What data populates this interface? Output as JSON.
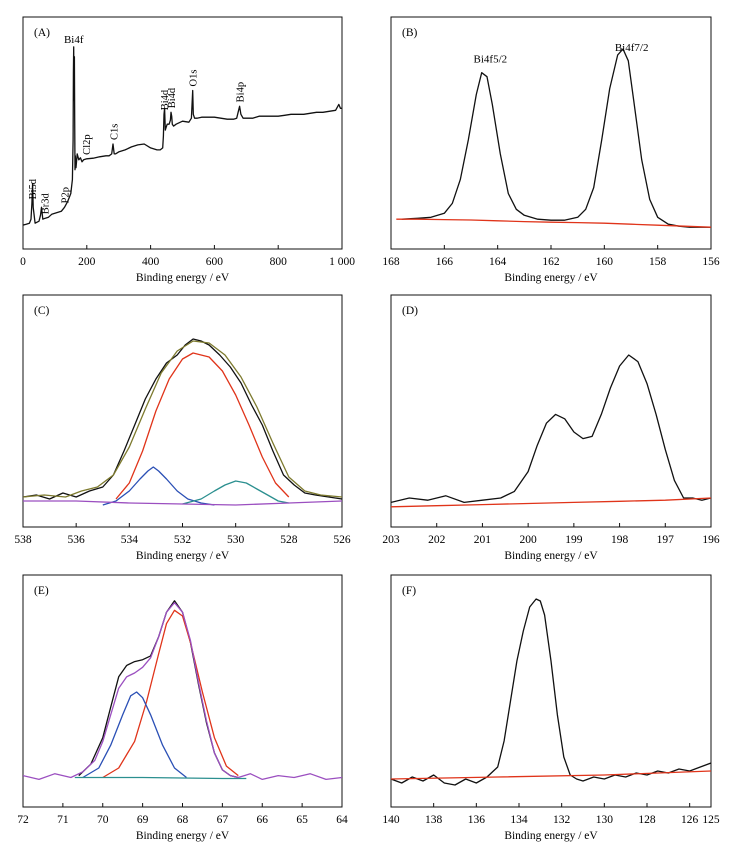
{
  "chart_data": [
    {
      "panel": "(A)",
      "type": "line",
      "xlabel": "Binding energy / eV",
      "xlim": [
        0,
        1000
      ],
      "xticks": [
        0,
        200,
        400,
        600,
        800,
        1000
      ],
      "xtick_labels": [
        "0",
        "200",
        "400",
        "600",
        "800",
        "1 000"
      ],
      "series": [
        {
          "color": "#111111",
          "x": [
            0,
            10,
            20,
            25,
            28,
            30,
            32,
            38,
            50,
            55,
            58,
            62,
            70,
            80,
            90,
            100,
            110,
            120,
            130,
            140,
            145,
            150,
            155,
            157,
            158,
            159,
            160,
            161,
            162,
            163,
            164,
            166,
            170,
            175,
            180,
            185,
            190,
            200,
            220,
            240,
            260,
            270,
            278,
            282,
            286,
            290,
            300,
            320,
            340,
            360,
            380,
            400,
            420,
            430,
            438,
            440,
            442,
            444,
            446,
            448,
            452,
            458,
            462,
            464,
            466,
            468,
            472,
            480,
            500,
            520,
            528,
            532,
            534,
            538,
            545,
            560,
            580,
            600,
            620,
            640,
            660,
            670,
            676,
            679,
            683,
            690,
            700,
            720,
            740,
            760,
            780,
            800,
            820,
            840,
            860,
            880,
            900,
            920,
            940,
            960,
            980,
            990,
            995,
            1000
          ],
          "y": [
            7,
            7.5,
            8,
            10,
            18,
            28,
            16,
            8,
            9,
            12,
            16,
            10,
            10.5,
            11,
            12.5,
            13,
            13.5,
            14,
            16,
            19,
            21,
            23,
            30,
            50,
            84,
            97,
            70,
            92,
            60,
            35,
            42,
            36,
            43,
            40,
            41,
            39,
            40,
            40.5,
            40.8,
            41.5,
            42,
            42,
            43,
            48,
            43,
            43,
            44,
            45,
            46.5,
            47.5,
            48,
            46,
            45,
            45,
            46,
            52,
            63,
            66,
            55,
            56,
            58,
            58,
            60,
            64,
            62,
            58,
            57,
            58,
            59.5,
            59,
            61,
            75,
            63,
            61,
            61,
            61.5,
            61.5,
            61.5,
            61,
            60.5,
            60.5,
            61,
            65,
            67,
            63,
            61,
            61,
            61,
            62,
            62,
            62,
            62,
            62.5,
            63,
            63,
            63,
            63.5,
            64,
            64,
            64.5,
            65,
            68,
            66,
            66
          ]
        }
      ],
      "annotations": [
        {
          "label": "Bi5d",
          "x": 28
        },
        {
          "label": "Br3d",
          "x": 68
        },
        {
          "label": "P2p",
          "x": 130
        },
        {
          "label": "Bi4f",
          "x": 159
        },
        {
          "label": "Cl2p",
          "x": 198
        },
        {
          "label": "C1s",
          "x": 284
        },
        {
          "label": "Bi4d",
          "x": 442
        },
        {
          "label": "Bi4d",
          "x": 464
        },
        {
          "label": "O1s",
          "x": 532
        },
        {
          "label": "Bi4p",
          "x": 679
        }
      ]
    },
    {
      "panel": "(B)",
      "type": "line",
      "xlabel": "Binding energy / eV",
      "xlim": [
        168,
        156
      ],
      "xticks": [
        168,
        166,
        164,
        162,
        160,
        158,
        156
      ],
      "xtick_labels": [
        "168",
        "166",
        "164",
        "162",
        "160",
        "158",
        "156"
      ],
      "series": [
        {
          "color": "#111111",
          "x": [
            167.6,
            167,
            166.5,
            166,
            165.7,
            165.4,
            165.1,
            164.8,
            164.6,
            164.4,
            164.2,
            163.9,
            163.6,
            163.3,
            163,
            162.5,
            162,
            161.5,
            161,
            160.7,
            160.4,
            160.1,
            159.8,
            159.5,
            159.3,
            159.1,
            158.9,
            158.6,
            158.3,
            158,
            157.6,
            157.2,
            156.8,
            156.4,
            156
          ],
          "y": [
            12,
            12.5,
            13,
            15,
            20,
            32,
            52,
            75,
            86,
            84,
            70,
            45,
            25,
            17,
            14,
            12,
            11.5,
            11.5,
            13,
            17,
            28,
            52,
            78,
            95,
            98,
            92,
            72,
            42,
            22,
            13,
            9.5,
            8.5,
            8,
            8,
            8
          ]
        },
        {
          "color": "#e0341a",
          "x": [
            167.8,
            167,
            166,
            165,
            164,
            163,
            162,
            161,
            160,
            159,
            158,
            157,
            156
          ],
          "y": [
            12,
            12,
            11.8,
            11.6,
            11.2,
            10.8,
            10.5,
            10.3,
            10,
            9.5,
            9,
            8.5,
            8
          ]
        }
      ],
      "annotations": [
        {
          "label": "Bi4f5/2",
          "x": 164.5
        },
        {
          "label": "Bi4f7/2",
          "x": 159.2
        }
      ]
    },
    {
      "panel": "(C)",
      "type": "line",
      "xlabel": "Binding energy / eV",
      "xlim": [
        538,
        526
      ],
      "xticks": [
        538,
        536,
        534,
        532,
        530,
        528,
        526
      ],
      "xtick_labels": [
        "538",
        "536",
        "534",
        "532",
        "530",
        "528",
        "526"
      ],
      "series": [
        {
          "color": "#111111",
          "x": [
            538,
            537.5,
            537,
            536.5,
            536,
            535.5,
            535,
            534.6,
            534.2,
            533.8,
            533.4,
            533,
            532.6,
            532.2,
            531.9,
            531.6,
            531.3,
            531,
            530.6,
            530.2,
            529.8,
            529.4,
            529,
            528.6,
            528.2,
            527.8,
            527.4,
            527,
            526.5,
            526
          ],
          "y": [
            9,
            10,
            8,
            11,
            9,
            12,
            14,
            20,
            32,
            45,
            58,
            68,
            76,
            80,
            85,
            88,
            87,
            85,
            80,
            74,
            66,
            55,
            45,
            32,
            20,
            15,
            11,
            10,
            9,
            8
          ]
        },
        {
          "color": "#e0341a",
          "x": [
            534.5,
            534,
            533.5,
            533,
            532.5,
            532,
            531.6,
            531,
            530.5,
            530,
            529.5,
            529,
            528.5,
            528
          ],
          "y": [
            8,
            16,
            32,
            52,
            68,
            78,
            81,
            79,
            72,
            60,
            45,
            29,
            16,
            9
          ]
        },
        {
          "color": "#2a4fb5",
          "x": [
            535,
            534.5,
            534,
            533.6,
            533.3,
            533.1,
            532.9,
            532.6,
            532.2,
            531.8,
            531.3,
            530.8
          ],
          "y": [
            5,
            7,
            12,
            18,
            22,
            24,
            22,
            18,
            12,
            8,
            6,
            5
          ]
        },
        {
          "color": "#2b8f8f",
          "x": [
            532,
            531.3,
            530.8,
            530.4,
            530,
            529.6,
            529.2,
            528.8,
            528.4,
            528
          ],
          "y": [
            5.5,
            8,
            12,
            15,
            17,
            16,
            13,
            10,
            7,
            6
          ]
        },
        {
          "color": "#7d7a2e",
          "x": [
            538,
            537.2,
            536.4,
            535.8,
            535.2,
            534.6,
            534,
            533.4,
            532.8,
            532.2,
            531.6,
            531,
            530.4,
            529.8,
            529.2,
            528.6,
            528,
            527.4,
            526.8,
            526
          ],
          "y": [
            9,
            10,
            9,
            12,
            14,
            20,
            34,
            53,
            71,
            82,
            87,
            86,
            80,
            69,
            54,
            36,
            19,
            12,
            10,
            9
          ]
        },
        {
          "color": "#9b4fc0",
          "x": [
            538,
            536,
            534,
            532,
            530,
            528,
            526
          ],
          "y": [
            7,
            7,
            6,
            5.5,
            5,
            6,
            7
          ]
        }
      ]
    },
    {
      "panel": "(D)",
      "type": "line",
      "xlabel": "Binding energy / eV",
      "xlim": [
        203,
        196
      ],
      "xticks": [
        203,
        202,
        201,
        200,
        199,
        198,
        197,
        196
      ],
      "xtick_labels": [
        "203",
        "202",
        "201",
        "200",
        "199",
        "198",
        "197",
        "196"
      ],
      "series": [
        {
          "color": "#111111",
          "x": [
            203,
            202.6,
            202.2,
            201.8,
            201.4,
            201,
            200.6,
            200.3,
            200,
            199.8,
            199.6,
            199.4,
            199.2,
            199,
            198.8,
            198.6,
            198.4,
            198.2,
            198,
            197.8,
            197.6,
            197.4,
            197.2,
            197,
            196.8,
            196.6,
            196.4,
            196.2,
            196
          ],
          "y": [
            8,
            10,
            9,
            11,
            8,
            9,
            10,
            13,
            22,
            34,
            44,
            48,
            46,
            40,
            37,
            38,
            48,
            60,
            70,
            75,
            72,
            62,
            48,
            32,
            18,
            10,
            10,
            9,
            10
          ]
        },
        {
          "color": "#e0341a",
          "x": [
            203,
            202,
            201,
            200,
            199,
            198,
            197,
            196
          ],
          "y": [
            6,
            6.5,
            7,
            7.5,
            8,
            8.5,
            9,
            10
          ]
        }
      ]
    },
    {
      "panel": "(E)",
      "type": "line",
      "xlabel": "Binding energy / eV",
      "xlim": [
        72,
        64
      ],
      "xticks": [
        72,
        71,
        70,
        69,
        68,
        67,
        66,
        65,
        64
      ],
      "xtick_labels": [
        "72",
        "71",
        "70",
        "69",
        "68",
        "67",
        "66",
        "65",
        "64"
      ],
      "series": [
        {
          "color": "#111111",
          "x": [
            70.6,
            70.3,
            70,
            69.8,
            69.6,
            69.4,
            69.2,
            69,
            68.8,
            68.6,
            68.4,
            68.2,
            68,
            67.8,
            67.6,
            67.4,
            67.2,
            67,
            66.8,
            66.6
          ],
          "y": [
            6,
            12,
            26,
            42,
            58,
            64,
            66,
            67,
            69,
            79,
            92,
            98,
            92,
            76,
            54,
            34,
            18,
            9,
            6,
            5
          ]
        },
        {
          "color": "#e0341a",
          "x": [
            70,
            69.6,
            69.2,
            68.9,
            68.6,
            68.4,
            68.2,
            68,
            67.8,
            67.5,
            67.2,
            66.9,
            66.6
          ],
          "y": [
            5,
            10,
            24,
            45,
            70,
            86,
            93,
            90,
            76,
            50,
            26,
            11,
            6
          ]
        },
        {
          "color": "#2a4fb5",
          "x": [
            70.5,
            70.1,
            69.8,
            69.5,
            69.3,
            69.15,
            69,
            68.8,
            68.5,
            68.2,
            67.9
          ],
          "y": [
            5,
            10,
            22,
            38,
            48,
            50,
            47,
            38,
            22,
            10,
            5
          ]
        },
        {
          "color": "#2b8f8f",
          "x": [
            70.7,
            69,
            67,
            66.4
          ],
          "y": [
            5,
            5,
            4.5,
            4.5
          ]
        },
        {
          "color": "#9b4fc0",
          "x": [
            72,
            71.6,
            71.2,
            70.8,
            70.5,
            70.2,
            70,
            69.8,
            69.6,
            69.4,
            69.2,
            69,
            68.8,
            68.6,
            68.4,
            68.2,
            68,
            67.8,
            67.6,
            67.4,
            67.2,
            67,
            66.8,
            66.6,
            66.3,
            66,
            65.6,
            65.2,
            64.8,
            64.4,
            64
          ],
          "y": [
            6,
            4,
            7,
            5,
            8,
            14,
            24,
            38,
            52,
            58,
            60,
            63,
            68,
            79,
            92,
            97,
            92,
            77,
            55,
            35,
            18,
            9,
            6,
            5,
            7,
            4,
            6,
            5,
            7,
            4,
            5
          ]
        }
      ]
    },
    {
      "panel": "(F)",
      "type": "line",
      "xlabel": "Binding energy / eV",
      "xlim": [
        140,
        125
      ],
      "xticks": [
        140,
        138,
        136,
        134,
        132,
        130,
        128,
        126,
        125
      ],
      "xtick_labels": [
        "140",
        "138",
        "136",
        "134",
        "132",
        "130",
        "128",
        "126",
        "125"
      ],
      "series": [
        {
          "color": "#111111",
          "x": [
            140,
            139.5,
            139,
            138.5,
            138,
            137.5,
            137,
            136.5,
            136,
            135.5,
            135,
            134.7,
            134.4,
            134.1,
            133.8,
            133.5,
            133.2,
            133,
            132.8,
            132.5,
            132.2,
            131.9,
            131.6,
            131.3,
            131,
            130.5,
            130,
            129.5,
            129,
            128.5,
            128,
            127.5,
            127,
            126.5,
            126,
            125.5,
            125
          ],
          "y": [
            6,
            4,
            7,
            5,
            8,
            4,
            3,
            6,
            4,
            7,
            12,
            25,
            45,
            65,
            80,
            92,
            96,
            95,
            88,
            65,
            38,
            17,
            8,
            6,
            5,
            7,
            6,
            8,
            7,
            9,
            8,
            10,
            9,
            11,
            10,
            12,
            14
          ]
        },
        {
          "color": "#e0341a",
          "x": [
            140,
            135,
            130,
            125
          ],
          "y": [
            6,
            7,
            8,
            10
          ]
        }
      ]
    }
  ]
}
